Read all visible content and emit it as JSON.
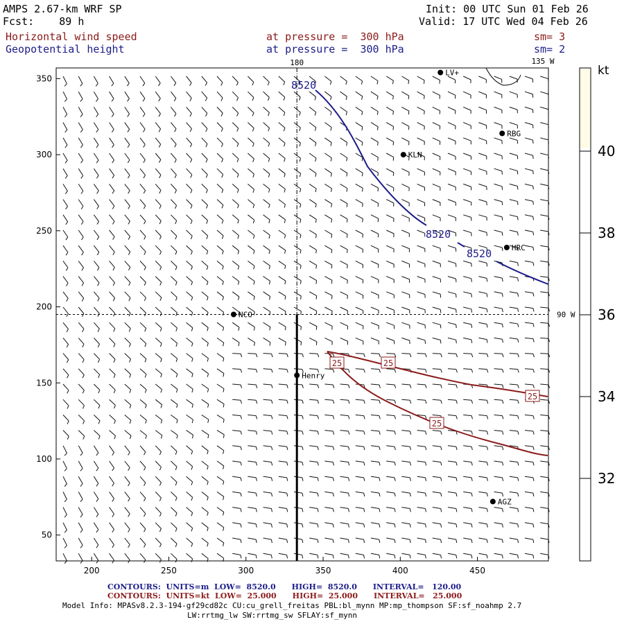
{
  "header": {
    "model": "AMPS 2.67-km WRF SP",
    "fcst": "Fcst:    89 h",
    "init": "Init: 00 UTC Sun 01 Feb 26",
    "valid": "Valid: 17 UTC Wed 04 Feb 26",
    "field1": "Horizontal wind speed",
    "field1_level": "at pressure =  300 hPa",
    "field1_sm": "sm= 3",
    "field2": "Geopotential height",
    "field2_level": "at pressure =  300 hPa",
    "field2_sm": "sm= 2"
  },
  "map": {
    "x_ticks": [
      "200",
      "250",
      "300",
      "350",
      "400",
      "450"
    ],
    "y_ticks": [
      "50",
      "100",
      "150",
      "200",
      "250",
      "300",
      "350"
    ],
    "xlim": [
      177,
      496
    ],
    "ylim": [
      33,
      357
    ],
    "meridian_label": "180",
    "meridian_135_label": "135 W",
    "parallel_label": "90 W",
    "stations": [
      {
        "name": "NCO",
        "x": 292,
        "y": 195
      },
      {
        "name": "Henry",
        "x": 333,
        "y": 155
      },
      {
        "name": "KLN",
        "x": 402,
        "y": 300
      },
      {
        "name": "RBG",
        "x": 466,
        "y": 314
      },
      {
        "name": "HRC",
        "x": 469,
        "y": 239
      },
      {
        "name": "AGZ",
        "x": 460,
        "y": 72
      },
      {
        "name": "LV+",
        "x": 426,
        "y": 354
      }
    ],
    "height_contour_label": "8520",
    "speed_contour_label": "25",
    "cross_section_x": 333,
    "wind_colors": {
      "barb": "#000000",
      "height": "#1c1c8a",
      "speed": "#8b1a1a"
    }
  },
  "colorbar": {
    "unit": "kt",
    "ticks": [
      "40",
      "38",
      "36",
      "34",
      "32"
    ],
    "fill_color": "#fffbe6"
  },
  "footer": {
    "contours_height": "CONTOURS:  UNITS=m  LOW=  8520.0      HIGH=  8520.0      INTERVAL=   120.00",
    "contours_speed": "CONTOURS:  UNITS=kt  LOW=  25.000      HIGH=  25.000      INTERVAL=   25.000",
    "model_info_1": "Model Info: MPASv8.2.3-194-gf29cd82c CU:cu_grell_freitas PBL:bl_mynn MP:mp_thompson SF:sf_noahmp 2.7",
    "model_info_2": "LW:rrtmg_lw SW:rrtmg_sw SFLAY:sf_mynn"
  }
}
